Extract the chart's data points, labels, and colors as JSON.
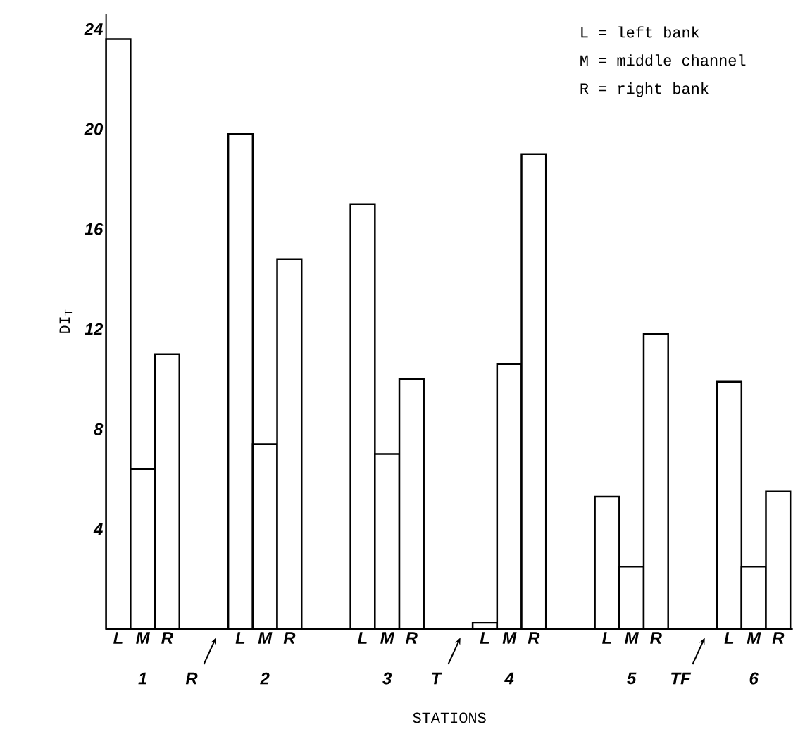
{
  "chart_data": {
    "type": "bar",
    "ylabel": "DI$_{T}$",
    "xlabel": "STATIONS",
    "color": "#ffffff",
    "categories": [
      "L",
      "M",
      "R",
      "R",
      null,
      "L",
      "M",
      "R",
      null,
      null,
      "L",
      "M",
      "R",
      "T",
      null,
      "L",
      "M",
      "R",
      null,
      null,
      "L",
      "M",
      "R",
      "TF",
      null,
      "L",
      "M",
      "R"
    ],
    "values": [
      23.6,
      6.4,
      11.0,
      null,
      null,
      19.8,
      7.4,
      14.8,
      null,
      null,
      17.0,
      7.0,
      10.0,
      null,
      null,
      0.25,
      10.6,
      19.0,
      null,
      null,
      5.3,
      2.5,
      11.8,
      null,
      null,
      9.9,
      2.5,
      5.5
    ],
    "ylim": [
      0,
      24.6
    ],
    "yticks": [
      4,
      8,
      12,
      16,
      20,
      24
    ],
    "annotations": [
      "L = left bank",
      "M = middle channel",
      "R = right bank",
      "1",
      "2",
      "3",
      "4",
      "5",
      "6"
    ],
    "grid": false
  }
}
